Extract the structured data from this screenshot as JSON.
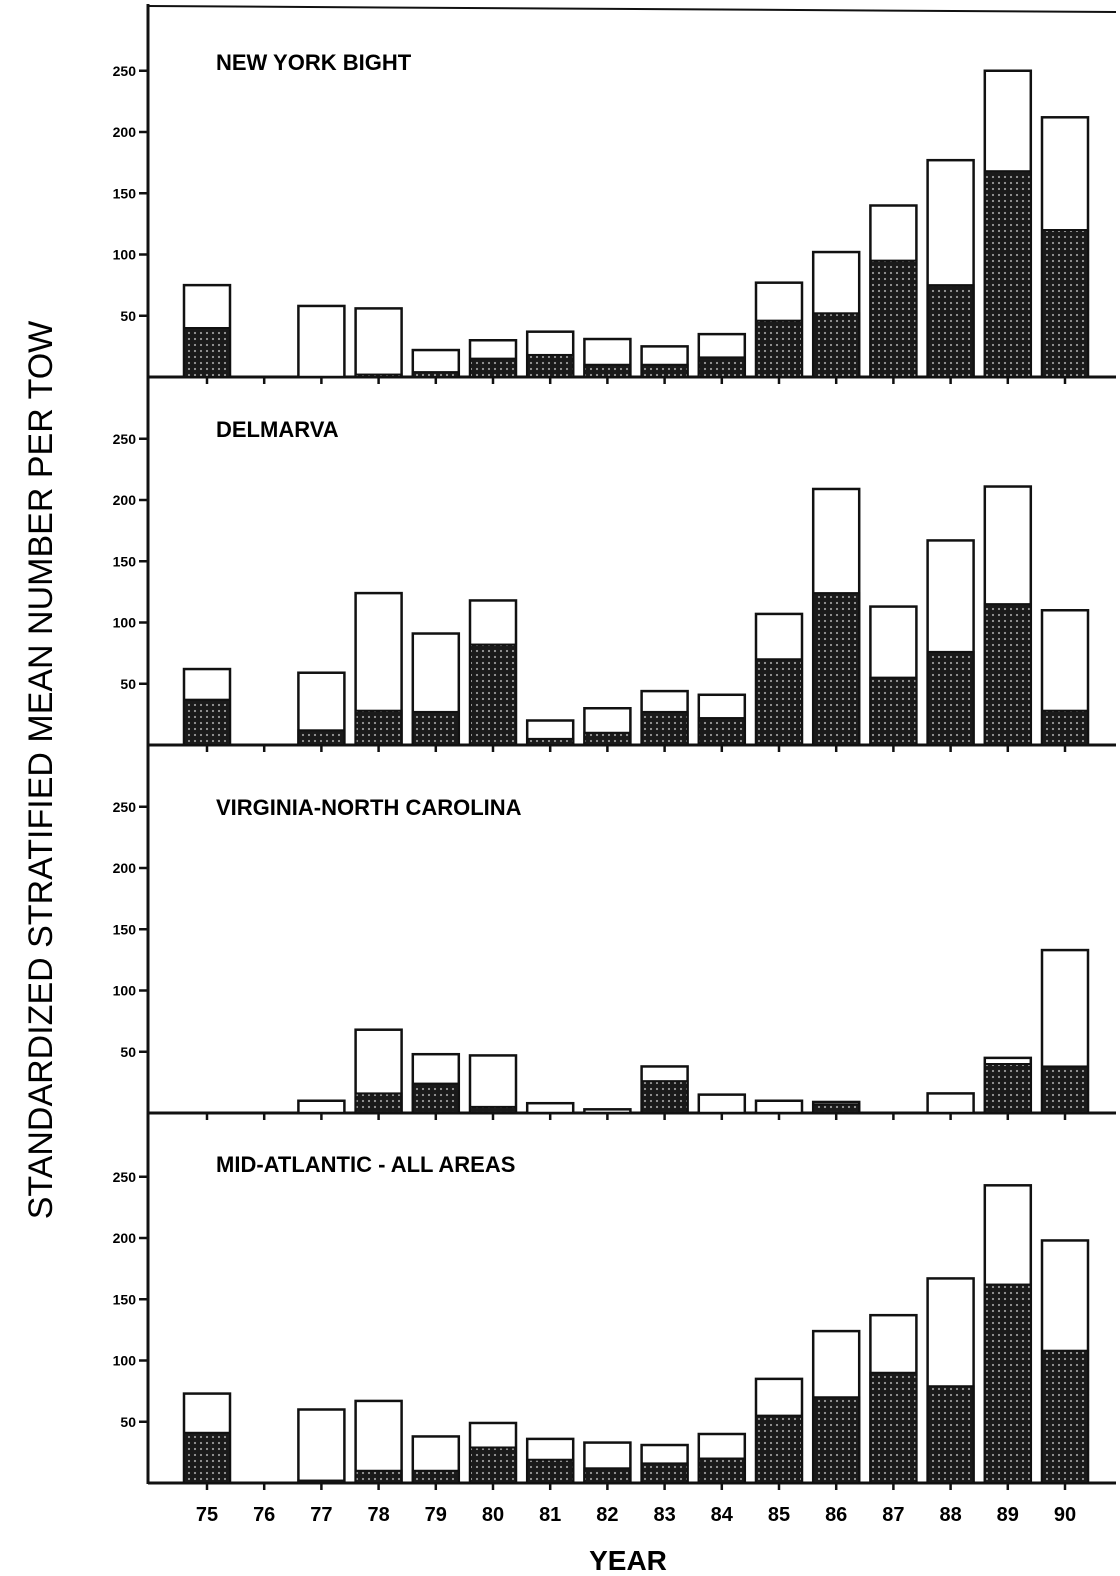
{
  "page": {
    "ylabel": "STANDARDIZED STRATIFIED MEAN NUMBER PER TOW",
    "xlabel": "YEAR"
  },
  "chart_data": [
    {
      "type": "bar",
      "stacked": true,
      "title": "NEW YORK BIGHT",
      "categories": [
        "75",
        "76",
        "77",
        "78",
        "79",
        "80",
        "81",
        "82",
        "83",
        "84",
        "85",
        "86",
        "87",
        "88",
        "89",
        "90"
      ],
      "series": [
        {
          "values": [
            40,
            0,
            0,
            2,
            4,
            15,
            18,
            10,
            10,
            16,
            46,
            52,
            95,
            75,
            168,
            120
          ]
        },
        {
          "values": [
            35,
            0,
            58,
            54,
            18,
            15,
            19,
            21,
            15,
            19,
            31,
            50,
            45,
            102,
            82,
            92
          ]
        }
      ],
      "yticks": [
        50,
        100,
        150,
        200,
        250
      ],
      "ylim": [
        0,
        295
      ],
      "colors": {
        "shaded": "#1c1c1c",
        "open": "#ffffff"
      }
    },
    {
      "type": "bar",
      "stacked": true,
      "title": "DELMARVA",
      "categories": [
        "75",
        "76",
        "77",
        "78",
        "79",
        "80",
        "81",
        "82",
        "83",
        "84",
        "85",
        "86",
        "87",
        "88",
        "89",
        "90"
      ],
      "series": [
        {
          "values": [
            37,
            0,
            12,
            28,
            27,
            82,
            5,
            10,
            27,
            22,
            70,
            124,
            55,
            76,
            115,
            28
          ]
        },
        {
          "values": [
            25,
            0,
            47,
            96,
            64,
            36,
            15,
            20,
            17,
            19,
            37,
            85,
            58,
            91,
            96,
            82
          ]
        }
      ],
      "yticks": [
        50,
        100,
        150,
        200,
        250
      ],
      "ylim": [
        0,
        295
      ],
      "colors": {
        "shaded": "#1c1c1c",
        "open": "#ffffff"
      }
    },
    {
      "type": "bar",
      "stacked": true,
      "title": "VIRGINIA-NORTH CAROLINA",
      "categories": [
        "75",
        "76",
        "77",
        "78",
        "79",
        "80",
        "81",
        "82",
        "83",
        "84",
        "85",
        "86",
        "87",
        "88",
        "89",
        "90"
      ],
      "series": [
        {
          "values": [
            0,
            0,
            0,
            16,
            24,
            5,
            0,
            0,
            26,
            0,
            0,
            7,
            0,
            0,
            40,
            38
          ]
        },
        {
          "values": [
            0,
            0,
            10,
            52,
            24,
            42,
            8,
            3,
            12,
            15,
            10,
            2,
            0,
            16,
            5,
            95
          ]
        }
      ],
      "yticks": [
        50,
        100,
        150,
        200,
        250
      ],
      "ylim": [
        0,
        295
      ],
      "colors": {
        "shaded": "#1c1c1c",
        "open": "#ffffff"
      }
    },
    {
      "type": "bar",
      "stacked": true,
      "title": "MID-ATLANTIC - ALL AREAS",
      "categories": [
        "75",
        "76",
        "77",
        "78",
        "79",
        "80",
        "81",
        "82",
        "83",
        "84",
        "85",
        "86",
        "87",
        "88",
        "89",
        "90"
      ],
      "series": [
        {
          "values": [
            41,
            0,
            2,
            10,
            10,
            29,
            19,
            12,
            16,
            20,
            55,
            70,
            90,
            79,
            162,
            108
          ]
        },
        {
          "values": [
            32,
            0,
            58,
            57,
            28,
            20,
            17,
            21,
            15,
            20,
            30,
            54,
            47,
            88,
            81,
            90
          ]
        }
      ],
      "yticks": [
        50,
        100,
        150,
        200,
        250
      ],
      "ylim": [
        0,
        295
      ],
      "colors": {
        "shaded": "#1c1c1c",
        "open": "#ffffff"
      }
    }
  ]
}
